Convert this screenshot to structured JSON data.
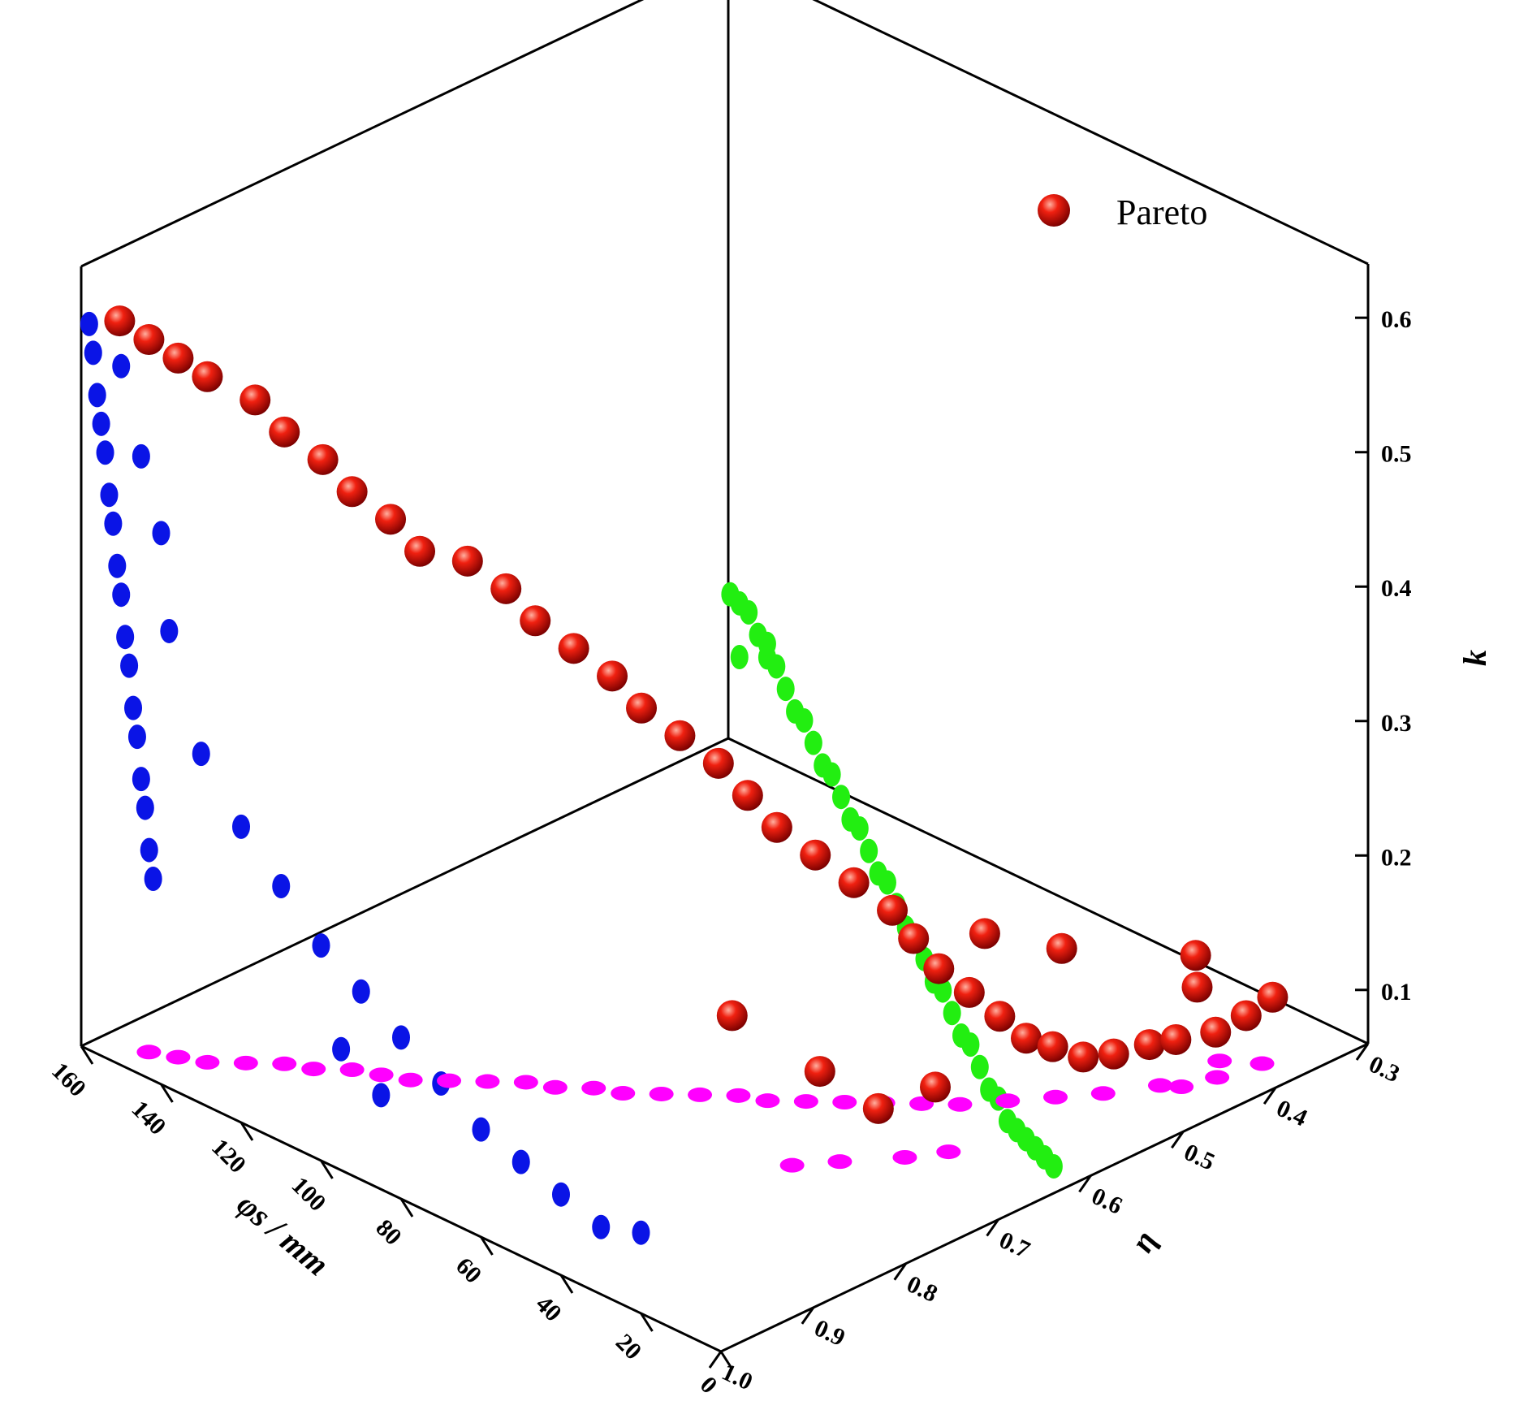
{
  "chart_data": {
    "type": "scatter",
    "legend": {
      "label": "Pareto",
      "placement": "top-right"
    },
    "axes": {
      "phi": {
        "label": "φs / mm",
        "ticks": [
          0,
          20,
          40,
          60,
          80,
          100,
          120,
          140,
          160
        ],
        "range": [
          0,
          160
        ]
      },
      "eta": {
        "label": "η",
        "ticks": [
          1.0,
          0.9,
          0.8,
          0.7,
          0.6,
          0.5,
          0.4,
          0.3
        ],
        "tick_labels": [
          "1.0",
          "0.9",
          "0.8",
          "0.7",
          "0.6",
          "0.5",
          "0.4",
          "0.3"
        ],
        "range": [
          0.3,
          1.0
        ]
      },
      "k": {
        "label": "k",
        "ticks": [
          0.1,
          0.2,
          0.3,
          0.4,
          0.5,
          0.6
        ],
        "tick_labels": [
          "0.1",
          "0.2",
          "0.3",
          "0.4",
          "0.5",
          "0.6"
        ],
        "range": [
          0.06,
          0.64
        ]
      }
    },
    "colors": {
      "pareto": "#e01010",
      "phi_eta_projection": "#ff00ff",
      "phi_k_projection": "#0a14e6",
      "eta_k_projection": "#22ee11"
    },
    "series": [
      {
        "name": "Pareto",
        "columns": [
          "phi",
          "eta",
          "k"
        ],
        "points": [
          [
            155,
            0.98,
            0.6
          ],
          [
            150,
            0.97,
            0.59
          ],
          [
            145,
            0.96,
            0.58
          ],
          [
            140,
            0.95,
            0.57
          ],
          [
            135,
            0.92,
            0.55
          ],
          [
            130,
            0.91,
            0.53
          ],
          [
            125,
            0.89,
            0.51
          ],
          [
            120,
            0.88,
            0.49
          ],
          [
            115,
            0.86,
            0.47
          ],
          [
            110,
            0.85,
            0.45
          ],
          [
            105,
            0.82,
            0.44
          ],
          [
            100,
            0.8,
            0.42
          ],
          [
            95,
            0.79,
            0.4
          ],
          [
            90,
            0.77,
            0.38
          ],
          [
            85,
            0.75,
            0.36
          ],
          [
            80,
            0.74,
            0.34
          ],
          [
            75,
            0.72,
            0.32
          ],
          [
            70,
            0.7,
            0.3
          ],
          [
            65,
            0.69,
            0.28
          ],
          [
            60,
            0.68,
            0.26
          ],
          [
            55,
            0.66,
            0.24
          ],
          [
            50,
            0.64,
            0.22
          ],
          [
            45,
            0.62,
            0.2
          ],
          [
            42,
            0.61,
            0.18
          ],
          [
            38,
            0.6,
            0.16
          ],
          [
            35,
            0.58,
            0.14
          ],
          [
            32,
            0.56,
            0.12
          ],
          [
            30,
            0.54,
            0.1
          ],
          [
            28,
            0.52,
            0.09
          ],
          [
            25,
            0.5,
            0.08
          ],
          [
            22,
            0.48,
            0.08
          ],
          [
            20,
            0.45,
            0.08
          ],
          [
            18,
            0.43,
            0.08
          ],
          [
            15,
            0.4,
            0.08
          ],
          [
            12,
            0.38,
            0.09
          ],
          [
            10,
            0.36,
            0.1
          ],
          [
            40,
            0.72,
            0.12
          ],
          [
            55,
            0.75,
            0.15
          ],
          [
            30,
            0.7,
            0.1
          ],
          [
            25,
            0.66,
            0.11
          ],
          [
            45,
            0.52,
            0.15
          ],
          [
            35,
            0.48,
            0.14
          ],
          [
            20,
            0.4,
            0.13
          ],
          [
            15,
            0.42,
            0.12
          ]
        ]
      }
    ],
    "projections": {
      "phi_eta": [
        [
          150,
          0.97
        ],
        [
          145,
          0.96
        ],
        [
          140,
          0.95
        ],
        [
          135,
          0.93
        ],
        [
          130,
          0.91
        ],
        [
          125,
          0.9
        ],
        [
          120,
          0.88
        ],
        [
          115,
          0.87
        ],
        [
          110,
          0.86
        ],
        [
          105,
          0.84
        ],
        [
          100,
          0.82
        ],
        [
          95,
          0.8
        ],
        [
          90,
          0.79
        ],
        [
          85,
          0.77
        ],
        [
          80,
          0.76
        ],
        [
          75,
          0.74
        ],
        [
          70,
          0.72
        ],
        [
          65,
          0.7
        ],
        [
          60,
          0.69
        ],
        [
          55,
          0.67
        ],
        [
          50,
          0.65
        ],
        [
          45,
          0.63
        ],
        [
          40,
          0.61
        ],
        [
          35,
          0.59
        ],
        [
          30,
          0.56
        ],
        [
          25,
          0.53
        ],
        [
          20,
          0.5
        ],
        [
          15,
          0.46
        ],
        [
          10,
          0.42
        ],
        [
          8,
          0.38
        ],
        [
          35,
          0.72
        ],
        [
          40,
          0.75
        ],
        [
          28,
          0.68
        ],
        [
          24,
          0.65
        ],
        [
          12,
          0.45
        ],
        [
          14,
          0.4
        ]
      ],
      "phi_k": [
        [
          158,
          0.6
        ],
        [
          157,
          0.58
        ],
        [
          156,
          0.55
        ],
        [
          155,
          0.53
        ],
        [
          154,
          0.51
        ],
        [
          153,
          0.48
        ],
        [
          152,
          0.46
        ],
        [
          151,
          0.43
        ],
        [
          150,
          0.41
        ],
        [
          149,
          0.38
        ],
        [
          148,
          0.36
        ],
        [
          147,
          0.33
        ],
        [
          146,
          0.31
        ],
        [
          145,
          0.28
        ],
        [
          144,
          0.26
        ],
        [
          143,
          0.23
        ],
        [
          142,
          0.21
        ],
        [
          150,
          0.58
        ],
        [
          145,
          0.52
        ],
        [
          140,
          0.47
        ],
        [
          138,
          0.4
        ],
        [
          130,
          0.32
        ],
        [
          120,
          0.28
        ],
        [
          110,
          0.25
        ],
        [
          100,
          0.22
        ],
        [
          90,
          0.2
        ],
        [
          80,
          0.18
        ],
        [
          70,
          0.16
        ],
        [
          60,
          0.14
        ],
        [
          50,
          0.13
        ],
        [
          40,
          0.12
        ],
        [
          30,
          0.11
        ],
        [
          20,
          0.12
        ],
        [
          95,
          0.15
        ],
        [
          85,
          0.13
        ]
      ],
      "eta_k": [
        [
          0.99,
          0.62
        ],
        [
          0.98,
          0.61
        ],
        [
          0.97,
          0.6
        ],
        [
          0.96,
          0.58
        ],
        [
          0.95,
          0.56
        ],
        [
          0.94,
          0.55
        ],
        [
          0.93,
          0.53
        ],
        [
          0.92,
          0.51
        ],
        [
          0.91,
          0.5
        ],
        [
          0.9,
          0.48
        ],
        [
          0.89,
          0.46
        ],
        [
          0.88,
          0.45
        ],
        [
          0.87,
          0.43
        ],
        [
          0.86,
          0.41
        ],
        [
          0.85,
          0.4
        ],
        [
          0.84,
          0.38
        ],
        [
          0.83,
          0.36
        ],
        [
          0.82,
          0.35
        ],
        [
          0.81,
          0.33
        ],
        [
          0.8,
          0.31
        ],
        [
          0.79,
          0.3
        ],
        [
          0.78,
          0.28
        ],
        [
          0.77,
          0.26
        ],
        [
          0.76,
          0.25
        ],
        [
          0.75,
          0.23
        ],
        [
          0.74,
          0.21
        ],
        [
          0.73,
          0.2
        ],
        [
          0.72,
          0.18
        ],
        [
          0.71,
          0.16
        ],
        [
          0.7,
          0.15
        ],
        [
          0.69,
          0.13
        ],
        [
          0.68,
          0.12
        ],
        [
          0.67,
          0.11
        ],
        [
          0.66,
          0.1
        ],
        [
          0.65,
          0.09
        ],
        [
          0.64,
          0.08
        ],
        [
          0.98,
          0.57
        ],
        [
          0.95,
          0.57
        ]
      ]
    }
  }
}
